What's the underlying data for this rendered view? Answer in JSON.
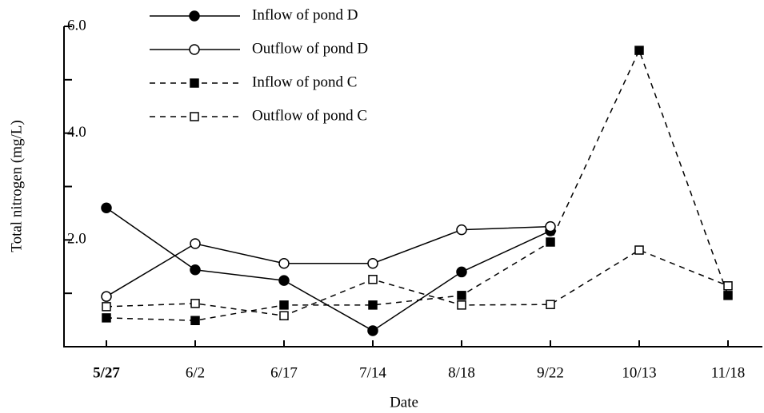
{
  "chart_data": {
    "type": "line",
    "x_label": "Date",
    "y_label": "Total nitrogen (mg/L)",
    "categories": [
      "5/27",
      "6/2",
      "6/17",
      "7/14",
      "8/18",
      "9/22",
      "10/13",
      "11/18"
    ],
    "series": [
      {
        "name": "Inflow of pond D",
        "color": "#000000",
        "marker": "filled-circle",
        "dash": "solid",
        "values": [
          2.6,
          1.44,
          1.24,
          0.3,
          1.4,
          2.17,
          null,
          null
        ]
      },
      {
        "name": "Outflow of pond D",
        "color": "#000000",
        "marker": "open-circle",
        "dash": "solid",
        "values": [
          0.94,
          1.93,
          1.56,
          1.56,
          2.19,
          2.25,
          null,
          null
        ]
      },
      {
        "name": "Inflow of pond C",
        "color": "#000000",
        "marker": "filled-square",
        "dash": "dashed",
        "values": [
          0.54,
          0.49,
          0.78,
          0.78,
          0.96,
          1.96,
          5.55,
          0.96
        ]
      },
      {
        "name": "Outflow of pond C",
        "color": "#000000",
        "marker": "open-square",
        "dash": "dashed",
        "values": [
          0.75,
          0.81,
          0.58,
          1.26,
          0.78,
          0.79,
          1.81,
          1.14
        ]
      }
    ],
    "ylim": [
      0,
      6
    ],
    "yticks": [
      {
        "value": 2,
        "label": "2.0"
      },
      {
        "value": 4,
        "label": "4.0"
      },
      {
        "value": 6,
        "label": "6.0"
      }
    ],
    "yminorticks": [
      1,
      3,
      5
    ],
    "grid": false,
    "legend": "top-left"
  }
}
